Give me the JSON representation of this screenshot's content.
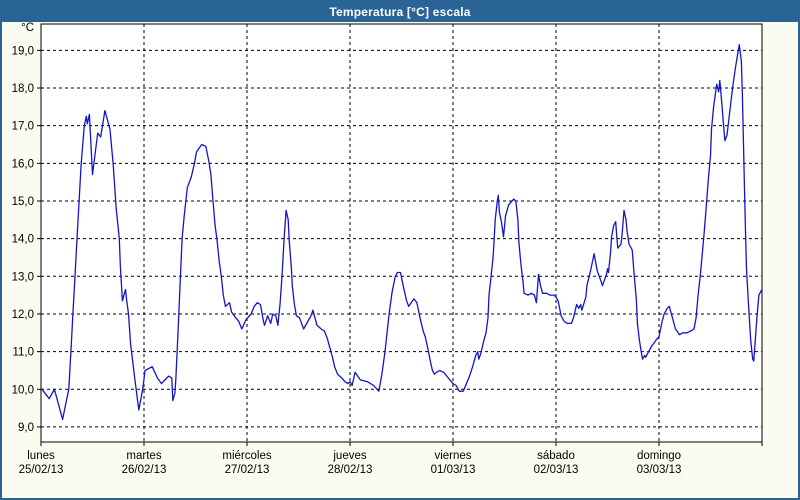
{
  "window": {
    "title": "Temperatura [°C] escala"
  },
  "colors": {
    "titlebar_bg": "#2a6496",
    "titlebar_text": "#ffffff",
    "panel_bg": "#fbfcf0",
    "plot_bg": "#ffffff",
    "grid": "#000000",
    "line": "#1414cc",
    "label_text": "#000000"
  },
  "chart_data": {
    "type": "line",
    "title": "Temperatura [°C] escala",
    "unit_label": "°C",
    "ylim": [
      8.6,
      19.7
    ],
    "grid": "dashed",
    "legend_position": "none",
    "y_ticks": [
      {
        "value": 9,
        "label": "9,0"
      },
      {
        "value": 10,
        "label": "10,0"
      },
      {
        "value": 11,
        "label": "11,0"
      },
      {
        "value": 12,
        "label": "12,0"
      },
      {
        "value": 13,
        "label": "13,0"
      },
      {
        "value": 14,
        "label": "14,0"
      },
      {
        "value": 15,
        "label": "15,0"
      },
      {
        "value": 16,
        "label": "16,0"
      },
      {
        "value": 17,
        "label": "17,0"
      },
      {
        "value": 18,
        "label": "18,0"
      },
      {
        "value": 19,
        "label": "19,0"
      }
    ],
    "x_days": [
      {
        "name": "lunes",
        "date": "25/02/13"
      },
      {
        "name": "martes",
        "date": "26/02/13"
      },
      {
        "name": "miércoles",
        "date": "27/02/13"
      },
      {
        "name": "jueves",
        "date": "28/02/13"
      },
      {
        "name": "viernes",
        "date": "01/03/13"
      },
      {
        "name": "sábado",
        "date": "02/03/13"
      },
      {
        "name": "domingo",
        "date": "03/03/13"
      }
    ],
    "series": [
      {
        "name": "Temperatura",
        "color": "#1414cc",
        "points": [
          [
            0.01,
            10.0
          ],
          [
            0.08,
            9.75
          ],
          [
            0.13,
            10.0
          ],
          [
            0.16,
            9.7
          ],
          [
            0.21,
            9.2
          ],
          [
            0.25,
            9.75
          ],
          [
            0.27,
            10.0
          ],
          [
            0.29,
            11.0
          ],
          [
            0.31,
            12.0
          ],
          [
            0.33,
            13.0
          ],
          [
            0.35,
            14.0
          ],
          [
            0.37,
            15.0
          ],
          [
            0.39,
            16.0
          ],
          [
            0.42,
            17.0
          ],
          [
            0.44,
            17.25
          ],
          [
            0.45,
            17.05
          ],
          [
            0.47,
            17.3
          ],
          [
            0.5,
            15.7
          ],
          [
            0.55,
            16.8
          ],
          [
            0.58,
            16.7
          ],
          [
            0.62,
            17.4
          ],
          [
            0.65,
            17.1
          ],
          [
            0.67,
            16.9
          ],
          [
            0.7,
            16.0
          ],
          [
            0.73,
            14.8
          ],
          [
            0.76,
            14.0
          ],
          [
            0.77,
            13.3
          ],
          [
            0.79,
            12.35
          ],
          [
            0.82,
            12.65
          ],
          [
            0.83,
            12.4
          ],
          [
            0.85,
            12.0
          ],
          [
            0.87,
            11.2
          ],
          [
            0.91,
            10.3
          ],
          [
            0.95,
            9.45
          ],
          [
            0.99,
            10.05
          ],
          [
            1.01,
            10.5
          ],
          [
            1.08,
            10.6
          ],
          [
            1.13,
            10.3
          ],
          [
            1.17,
            10.15
          ],
          [
            1.22,
            10.3
          ],
          [
            1.24,
            10.35
          ],
          [
            1.27,
            10.3
          ],
          [
            1.28,
            9.7
          ],
          [
            1.3,
            9.9
          ],
          [
            1.31,
            10.3
          ],
          [
            1.33,
            11.5
          ],
          [
            1.35,
            12.8
          ],
          [
            1.37,
            14.0
          ],
          [
            1.39,
            14.6
          ],
          [
            1.42,
            15.35
          ],
          [
            1.46,
            15.65
          ],
          [
            1.49,
            16.0
          ],
          [
            1.51,
            16.3
          ],
          [
            1.56,
            16.5
          ],
          [
            1.6,
            16.45
          ],
          [
            1.63,
            16.05
          ],
          [
            1.65,
            15.7
          ],
          [
            1.67,
            15.0
          ],
          [
            1.69,
            14.35
          ],
          [
            1.71,
            13.95
          ],
          [
            1.73,
            13.4
          ],
          [
            1.75,
            13.0
          ],
          [
            1.77,
            12.5
          ],
          [
            1.79,
            12.2
          ],
          [
            1.83,
            12.3
          ],
          [
            1.85,
            12.05
          ],
          [
            1.89,
            11.9
          ],
          [
            1.92,
            11.8
          ],
          [
            1.95,
            11.6
          ],
          [
            1.99,
            11.85
          ],
          [
            2.04,
            12.0
          ],
          [
            2.07,
            12.2
          ],
          [
            2.1,
            12.3
          ],
          [
            2.13,
            12.25
          ],
          [
            2.16,
            11.8
          ],
          [
            2.17,
            11.7
          ],
          [
            2.2,
            11.95
          ],
          [
            2.23,
            11.75
          ],
          [
            2.25,
            12.0
          ],
          [
            2.28,
            11.95
          ],
          [
            2.3,
            11.7
          ],
          [
            2.32,
            12.25
          ],
          [
            2.34,
            13.0
          ],
          [
            2.36,
            14.0
          ],
          [
            2.38,
            14.75
          ],
          [
            2.4,
            14.5
          ],
          [
            2.41,
            13.95
          ],
          [
            2.43,
            13.25
          ],
          [
            2.44,
            12.75
          ],
          [
            2.46,
            12.25
          ],
          [
            2.48,
            11.95
          ],
          [
            2.51,
            11.9
          ],
          [
            2.55,
            11.6
          ],
          [
            2.59,
            11.8
          ],
          [
            2.62,
            11.95
          ],
          [
            2.64,
            12.1
          ],
          [
            2.68,
            11.7
          ],
          [
            2.72,
            11.6
          ],
          [
            2.75,
            11.55
          ],
          [
            2.78,
            11.35
          ],
          [
            2.81,
            11.05
          ],
          [
            2.83,
            10.85
          ],
          [
            2.85,
            10.6
          ],
          [
            2.88,
            10.4
          ],
          [
            2.92,
            10.3
          ],
          [
            2.95,
            10.2
          ],
          [
            2.98,
            10.15
          ],
          [
            3.0,
            10.2
          ],
          [
            3.02,
            10.1
          ],
          [
            3.05,
            10.45
          ],
          [
            3.1,
            10.25
          ],
          [
            3.17,
            10.2
          ],
          [
            3.23,
            10.1
          ],
          [
            3.28,
            9.95
          ],
          [
            3.31,
            10.4
          ],
          [
            3.34,
            11.0
          ],
          [
            3.38,
            12.0
          ],
          [
            3.41,
            12.6
          ],
          [
            3.44,
            13.0
          ],
          [
            3.46,
            13.1
          ],
          [
            3.49,
            13.1
          ],
          [
            3.52,
            12.7
          ],
          [
            3.55,
            12.35
          ],
          [
            3.57,
            12.2
          ],
          [
            3.62,
            12.4
          ],
          [
            3.65,
            12.3
          ],
          [
            3.68,
            11.9
          ],
          [
            3.71,
            11.55
          ],
          [
            3.73,
            11.4
          ],
          [
            3.75,
            11.15
          ],
          [
            3.78,
            10.75
          ],
          [
            3.8,
            10.5
          ],
          [
            3.82,
            10.4
          ],
          [
            3.84,
            10.45
          ],
          [
            3.87,
            10.5
          ],
          [
            3.91,
            10.45
          ],
          [
            3.94,
            10.35
          ],
          [
            3.97,
            10.25
          ],
          [
            4.0,
            10.15
          ],
          [
            4.03,
            10.1
          ],
          [
            4.06,
            9.95
          ],
          [
            4.1,
            9.95
          ],
          [
            4.16,
            10.35
          ],
          [
            4.19,
            10.6
          ],
          [
            4.22,
            10.9
          ],
          [
            4.24,
            11.0
          ],
          [
            4.25,
            10.8
          ],
          [
            4.27,
            10.95
          ],
          [
            4.3,
            11.3
          ],
          [
            4.32,
            11.5
          ],
          [
            4.34,
            11.9
          ],
          [
            4.35,
            12.5
          ],
          [
            4.37,
            13.0
          ],
          [
            4.39,
            13.55
          ],
          [
            4.4,
            14.0
          ],
          [
            4.41,
            14.5
          ],
          [
            4.43,
            15.0
          ],
          [
            4.44,
            15.15
          ],
          [
            4.45,
            14.7
          ],
          [
            4.47,
            14.45
          ],
          [
            4.49,
            14.05
          ],
          [
            4.51,
            14.6
          ],
          [
            4.54,
            14.9
          ],
          [
            4.59,
            15.05
          ],
          [
            4.61,
            15.0
          ],
          [
            4.63,
            14.5
          ],
          [
            4.64,
            13.9
          ],
          [
            4.66,
            13.3
          ],
          [
            4.68,
            12.85
          ],
          [
            4.69,
            12.55
          ],
          [
            4.73,
            12.5
          ],
          [
            4.76,
            12.55
          ],
          [
            4.79,
            12.5
          ],
          [
            4.81,
            12.3
          ],
          [
            4.83,
            13.05
          ],
          [
            4.85,
            12.75
          ],
          [
            4.87,
            12.55
          ],
          [
            4.91,
            12.55
          ],
          [
            4.94,
            12.5
          ],
          [
            4.98,
            12.5
          ],
          [
            5.0,
            12.45
          ],
          [
            5.02,
            12.35
          ],
          [
            5.05,
            11.95
          ],
          [
            5.08,
            11.8
          ],
          [
            5.11,
            11.75
          ],
          [
            5.15,
            11.75
          ],
          [
            5.17,
            11.9
          ],
          [
            5.2,
            12.25
          ],
          [
            5.22,
            12.15
          ],
          [
            5.24,
            12.25
          ],
          [
            5.25,
            12.1
          ],
          [
            5.29,
            12.45
          ],
          [
            5.3,
            12.75
          ],
          [
            5.34,
            13.2
          ],
          [
            5.37,
            13.6
          ],
          [
            5.4,
            13.15
          ],
          [
            5.44,
            12.85
          ],
          [
            5.45,
            12.75
          ],
          [
            5.49,
            13.05
          ],
          [
            5.5,
            13.2
          ],
          [
            5.51,
            13.1
          ],
          [
            5.53,
            13.65
          ],
          [
            5.54,
            14.05
          ],
          [
            5.56,
            14.35
          ],
          [
            5.58,
            14.45
          ],
          [
            5.59,
            14.05
          ],
          [
            5.6,
            13.75
          ],
          [
            5.63,
            13.85
          ],
          [
            5.64,
            14.05
          ],
          [
            5.66,
            14.75
          ],
          [
            5.68,
            14.5
          ],
          [
            5.69,
            14.2
          ],
          [
            5.71,
            13.85
          ],
          [
            5.74,
            13.7
          ],
          [
            5.76,
            13.0
          ],
          [
            5.78,
            12.4
          ],
          [
            5.79,
            11.75
          ],
          [
            5.81,
            11.3
          ],
          [
            5.83,
            10.95
          ],
          [
            5.84,
            10.8
          ],
          [
            5.86,
            10.9
          ],
          [
            5.87,
            10.85
          ],
          [
            5.9,
            11.0
          ],
          [
            5.93,
            11.15
          ],
          [
            5.97,
            11.3
          ],
          [
            6.0,
            11.4
          ],
          [
            6.03,
            11.8
          ],
          [
            6.05,
            12.0
          ],
          [
            6.08,
            12.15
          ],
          [
            6.1,
            12.2
          ],
          [
            6.13,
            11.9
          ],
          [
            6.16,
            11.6
          ],
          [
            6.2,
            11.45
          ],
          [
            6.23,
            11.5
          ],
          [
            6.27,
            11.5
          ],
          [
            6.31,
            11.55
          ],
          [
            6.34,
            11.6
          ],
          [
            6.36,
            11.9
          ],
          [
            6.38,
            12.5
          ],
          [
            6.4,
            13.0
          ],
          [
            6.42,
            13.6
          ],
          [
            6.44,
            14.2
          ],
          [
            6.46,
            14.9
          ],
          [
            6.48,
            15.6
          ],
          [
            6.5,
            16.2
          ],
          [
            6.51,
            16.9
          ],
          [
            6.53,
            17.5
          ],
          [
            6.56,
            18.1
          ],
          [
            6.58,
            17.9
          ],
          [
            6.59,
            18.2
          ],
          [
            6.61,
            17.6
          ],
          [
            6.63,
            16.9
          ],
          [
            6.64,
            16.6
          ],
          [
            6.66,
            16.75
          ],
          [
            6.68,
            17.2
          ],
          [
            6.71,
            17.9
          ],
          [
            6.74,
            18.5
          ],
          [
            6.77,
            19.0
          ],
          [
            6.78,
            19.15
          ],
          [
            6.8,
            18.7
          ],
          [
            6.81,
            17.8
          ],
          [
            6.82,
            16.5
          ],
          [
            6.83,
            15.3
          ],
          [
            6.84,
            14.2
          ],
          [
            6.85,
            13.2
          ],
          [
            6.87,
            12.2
          ],
          [
            6.89,
            11.3
          ],
          [
            6.91,
            10.8
          ],
          [
            6.92,
            10.75
          ],
          [
            6.95,
            11.9
          ],
          [
            6.97,
            12.5
          ],
          [
            7.0,
            12.65
          ]
        ]
      }
    ]
  }
}
